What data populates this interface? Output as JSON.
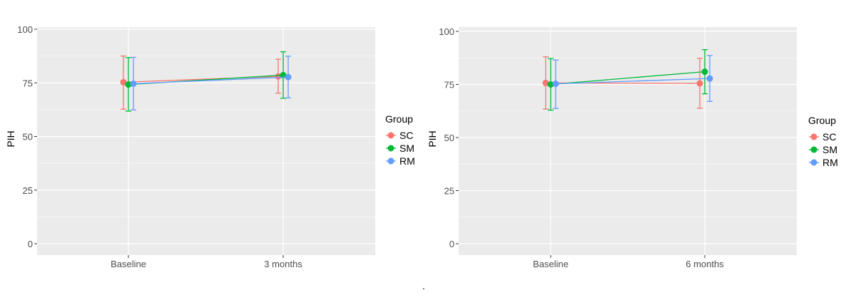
{
  "chart_data": [
    {
      "type": "line",
      "title": "",
      "xlabel": "",
      "ylabel": "PIH",
      "ylim": [
        0,
        100
      ],
      "y_ticks": [
        "0",
        "25",
        "50",
        "75",
        "100"
      ],
      "categories": [
        "Baseline",
        "3 months"
      ],
      "grid": true,
      "error_bars": true,
      "legend": {
        "title": "Group",
        "placement": "right"
      },
      "series": [
        {
          "name": "SC",
          "color": "#F8766D",
          "values": [
            75.3,
            78.0
          ],
          "lower": [
            62.7,
            70.2
          ],
          "upper": [
            87.5,
            86.0
          ]
        },
        {
          "name": "SM",
          "color": "#00BA38",
          "values": [
            74.2,
            78.6
          ],
          "lower": [
            61.8,
            67.8
          ],
          "upper": [
            86.8,
            89.5
          ]
        },
        {
          "name": "RM",
          "color": "#619CFF",
          "values": [
            74.6,
            77.7
          ],
          "lower": [
            62.4,
            68.0
          ],
          "upper": [
            86.9,
            87.4
          ]
        }
      ]
    },
    {
      "type": "line",
      "title": "",
      "xlabel": "",
      "ylabel": "PIH",
      "ylim": [
        0,
        100
      ],
      "y_ticks": [
        "0",
        "25",
        "50",
        "75",
        "100"
      ],
      "categories": [
        "Baseline",
        "6 months"
      ],
      "grid": true,
      "error_bars": true,
      "legend": {
        "title": "Group",
        "placement": "right"
      },
      "series": [
        {
          "name": "SC",
          "color": "#F8766D",
          "values": [
            75.7,
            75.5
          ],
          "lower": [
            63.4,
            63.8
          ],
          "upper": [
            88.0,
            87.3
          ]
        },
        {
          "name": "SM",
          "color": "#00BA38",
          "values": [
            75.0,
            81.0
          ],
          "lower": [
            62.9,
            70.6
          ],
          "upper": [
            87.2,
            91.4
          ]
        },
        {
          "name": "RM",
          "color": "#619CFF",
          "values": [
            75.3,
            77.8
          ],
          "lower": [
            63.7,
            67.0
          ],
          "upper": [
            86.5,
            88.6
          ]
        }
      ]
    }
  ],
  "separator": "."
}
